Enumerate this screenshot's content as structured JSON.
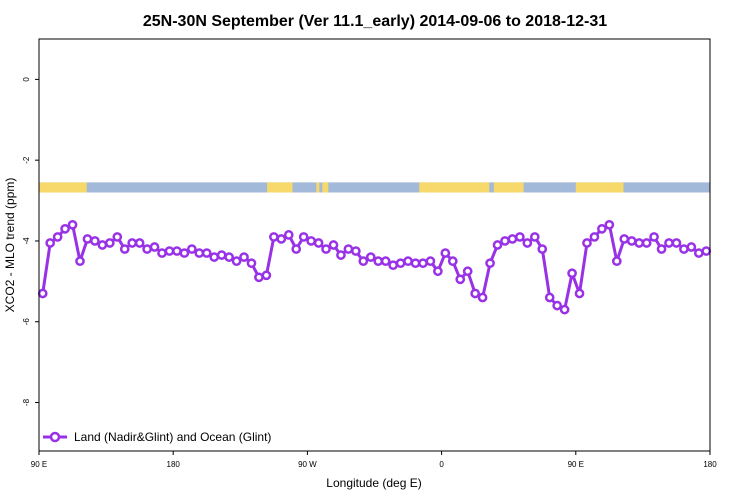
{
  "chart_data": {
    "type": "line",
    "title": "25N-30N September (Ver 11.1_early)   2014-09-06 to 2018-12-31",
    "xlabel": "Longitude (deg E)",
    "ylabel": "XCO2 - MLO trend (ppm)",
    "x_ticks": [
      {
        "value": 90,
        "label": "90 E"
      },
      {
        "value": 180,
        "label": "180"
      },
      {
        "value": 270,
        "label": "90 W"
      },
      {
        "value": 360,
        "label": "0"
      },
      {
        "value": 450,
        "label": "90 E"
      },
      {
        "value": 540,
        "label": "180"
      }
    ],
    "y_ticks": [
      {
        "value": 0,
        "label": "0"
      },
      {
        "value": -2,
        "label": "-2"
      },
      {
        "value": -4,
        "label": "-4"
      },
      {
        "value": -6,
        "label": "-6"
      },
      {
        "value": -8,
        "label": "-8"
      }
    ],
    "xlim": [
      90,
      540
    ],
    "ylim": [
      -9.2,
      1.0
    ],
    "grid": false,
    "legend_position": "bottom-left",
    "surface_band": {
      "ymin": -2.8,
      "ymax": -2.55,
      "land_color": "#f7d86a",
      "ocean_color": "#a3b9d9",
      "land_segments": [
        [
          90,
          122
        ],
        [
          243,
          260
        ],
        [
          276,
          278
        ],
        [
          280,
          284
        ],
        [
          345,
          392
        ],
        [
          395,
          415
        ],
        [
          450,
          482
        ]
      ]
    },
    "series": [
      {
        "name": "Land (Nadir&Glint) and Ocean (Glint)",
        "color": "#9932e6",
        "x": [
          92.5,
          97.5,
          102.5,
          107.5,
          112.5,
          117.5,
          122.5,
          127.5,
          132.5,
          137.5,
          142.5,
          147.5,
          152.5,
          157.5,
          162.5,
          167.5,
          172.5,
          177.5,
          182.5,
          187.5,
          192.5,
          197.5,
          202.5,
          207.5,
          212.5,
          217.5,
          222.5,
          227.5,
          232.5,
          237.5,
          242.5,
          247.5,
          252.5,
          257.5,
          262.5,
          267.5,
          272.5,
          277.5,
          282.5,
          287.5,
          292.5,
          297.5,
          302.5,
          307.5,
          312.5,
          317.5,
          322.5,
          327.5,
          332.5,
          337.5,
          342.5,
          347.5,
          352.5,
          357.5,
          362.5,
          367.5,
          372.5,
          377.5,
          382.5,
          387.5,
          392.5,
          397.5,
          402.5,
          407.5,
          412.5,
          417.5,
          422.5,
          427.5,
          432.5,
          437.5,
          442.5,
          447.5,
          452.5,
          457.5,
          462.5,
          467.5,
          472.5,
          477.5,
          482.5,
          487.5,
          492.5,
          497.5,
          502.5,
          507.5,
          512.5,
          517.5,
          522.5,
          527.5,
          532.5,
          537.5
        ],
        "y": [
          -5.3,
          -4.05,
          -3.9,
          -3.7,
          -3.6,
          -4.5,
          -3.95,
          -4.0,
          -4.1,
          -4.05,
          -3.9,
          -4.2,
          -4.05,
          -4.05,
          -4.2,
          -4.15,
          -4.3,
          -4.25,
          -4.25,
          -4.3,
          -4.2,
          -4.3,
          -4.3,
          -4.4,
          -4.35,
          -4.4,
          -4.5,
          -4.4,
          -4.55,
          -4.9,
          -4.85,
          -3.9,
          -3.95,
          -3.85,
          -4.2,
          -3.9,
          -4.0,
          -4.05,
          -4.2,
          -4.1,
          -4.35,
          -4.2,
          -4.25,
          -4.5,
          -4.4,
          -4.5,
          -4.5,
          -4.6,
          -4.55,
          -4.5,
          -4.55,
          -4.55,
          -4.5,
          -4.75,
          -4.3,
          -4.5,
          -4.95,
          -4.75,
          -5.3,
          -5.4,
          -4.55,
          -4.1,
          -4.0,
          -3.95,
          -3.9,
          -4.05,
          -3.9,
          -4.2,
          -5.4,
          -5.6,
          -5.7,
          -4.8,
          -5.3,
          -4.05,
          -3.9,
          -3.7,
          -3.6,
          -4.5,
          -3.95,
          -4.0,
          -4.05,
          -4.05,
          -3.9,
          -4.2,
          -4.05,
          -4.05,
          -4.2,
          -4.15,
          -4.3,
          -4.25
        ]
      }
    ]
  }
}
